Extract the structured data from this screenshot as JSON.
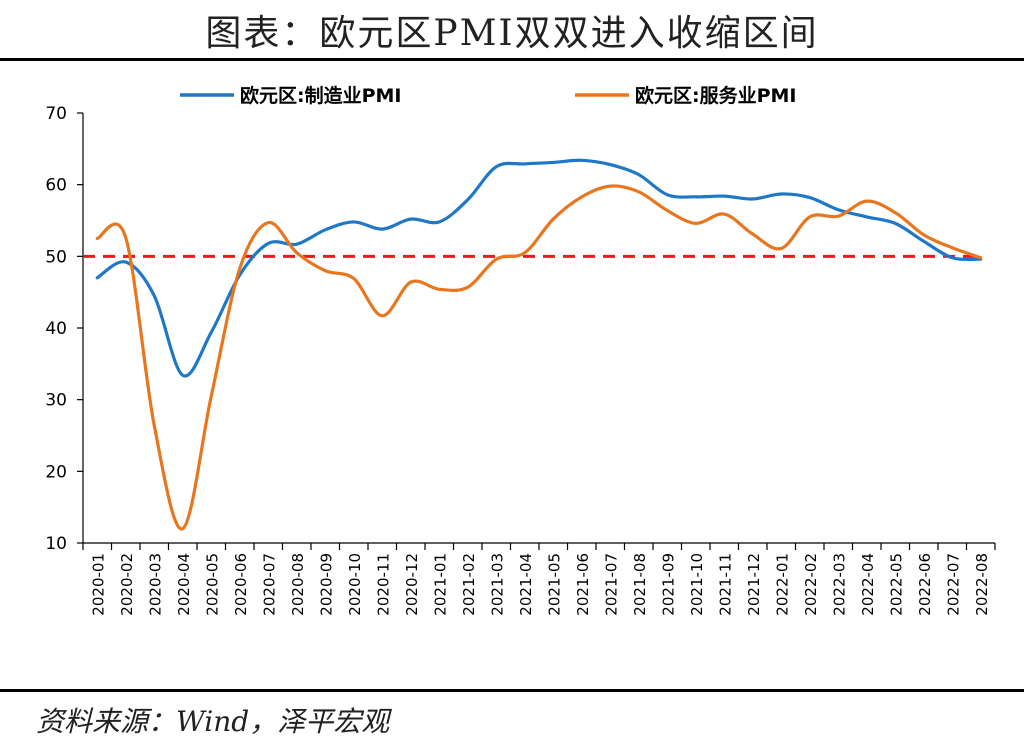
{
  "header": {
    "title": "图表：欧元区PMI双双进入收缩区间"
  },
  "footer": {
    "source": "资料来源：Wind，泽平宏观"
  },
  "colors": {
    "manufacturing": "#1F77C8",
    "services": "#E8761E",
    "reference": "#E8191C"
  },
  "chart_data": {
    "type": "line",
    "title": "",
    "xlabel": "",
    "ylabel": "",
    "ylim": [
      10,
      70
    ],
    "yticks": [
      10,
      20,
      30,
      40,
      50,
      60,
      70
    ],
    "grid": false,
    "legend_position": "top",
    "reference_line": 50,
    "categories": [
      "2020-01",
      "2020-02",
      "2020-03",
      "2020-04",
      "2020-05",
      "2020-06",
      "2020-07",
      "2020-08",
      "2020-09",
      "2020-10",
      "2020-11",
      "2020-12",
      "2021-01",
      "2021-02",
      "2021-03",
      "2021-04",
      "2021-05",
      "2021-06",
      "2021-07",
      "2021-08",
      "2021-09",
      "2021-10",
      "2021-11",
      "2021-12",
      "2022-01",
      "2022-02",
      "2022-03",
      "2022-04",
      "2022-05",
      "2022-06",
      "2022-07",
      "2022-08"
    ],
    "series": [
      {
        "name": "欧元区:制造业PMI",
        "color": "#1F77C8",
        "values": [
          47.0,
          49.2,
          44.5,
          33.4,
          39.4,
          47.4,
          51.8,
          51.7,
          53.7,
          54.8,
          53.8,
          55.2,
          54.8,
          57.9,
          62.5,
          62.9,
          63.1,
          63.4,
          62.8,
          61.4,
          58.6,
          58.3,
          58.4,
          58.0,
          58.7,
          58.2,
          56.5,
          55.5,
          54.6,
          52.1,
          49.8,
          49.6
        ]
      },
      {
        "name": "欧元区:服务业PMI",
        "color": "#E8761E",
        "values": [
          52.5,
          52.6,
          26.4,
          12.0,
          30.5,
          48.3,
          54.7,
          50.5,
          48.0,
          46.9,
          41.7,
          46.4,
          45.4,
          45.7,
          49.6,
          50.5,
          55.2,
          58.3,
          59.8,
          59.0,
          56.4,
          54.6,
          55.9,
          53.1,
          51.1,
          55.5,
          55.6,
          57.7,
          56.1,
          53.0,
          51.2,
          49.8
        ]
      }
    ]
  }
}
